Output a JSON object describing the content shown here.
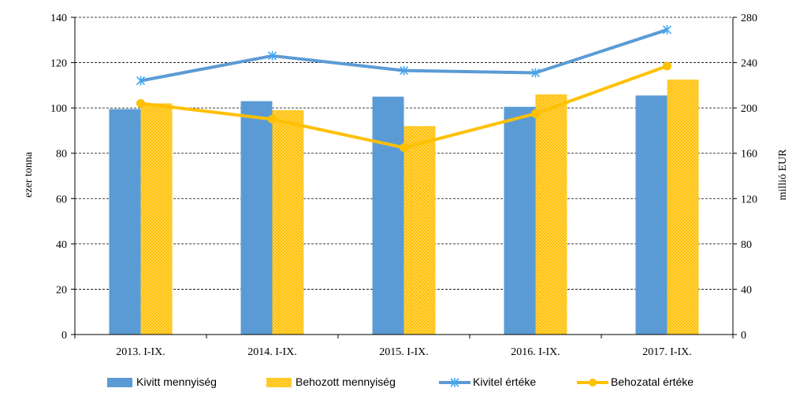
{
  "chart_data": {
    "type": "bar+line",
    "title": "",
    "categories": [
      "2013. I-IX.",
      "2014. I-IX.",
      "2015. I-IX.",
      "2016. I-IX.",
      "2017. I-IX."
    ],
    "ylabel_left": "ezer tonna",
    "ylabel_right": "millió  EUR",
    "ylim_left": [
      0,
      140
    ],
    "yticks_left": [
      0,
      20,
      40,
      60,
      80,
      100,
      120,
      140
    ],
    "ylim_right": [
      0,
      280
    ],
    "yticks_right": [
      0,
      40,
      80,
      120,
      160,
      200,
      240,
      280
    ],
    "grid": true,
    "legend_position": "bottom",
    "series": [
      {
        "name": "Kivitt mennyiség",
        "type": "bar",
        "axis": "left",
        "color": "#5b9bd5",
        "values": [
          99.5,
          103,
          105,
          100.5,
          105.5
        ]
      },
      {
        "name": "Behozott mennyiség",
        "type": "bar",
        "axis": "left",
        "color": "#ffc000",
        "pattern": "dotted",
        "values": [
          102,
          99,
          92,
          106,
          112.5
        ]
      },
      {
        "name": "Kivitel értéke",
        "type": "line",
        "axis": "right",
        "color": "#5b9bd5",
        "marker": "asterisk",
        "values": [
          224,
          246,
          233,
          231,
          269
        ]
      },
      {
        "name": "Behozatal értéke",
        "type": "line",
        "axis": "right",
        "color": "#ffc000",
        "marker": "circle",
        "values": [
          204,
          190,
          165,
          195,
          237
        ]
      }
    ]
  }
}
